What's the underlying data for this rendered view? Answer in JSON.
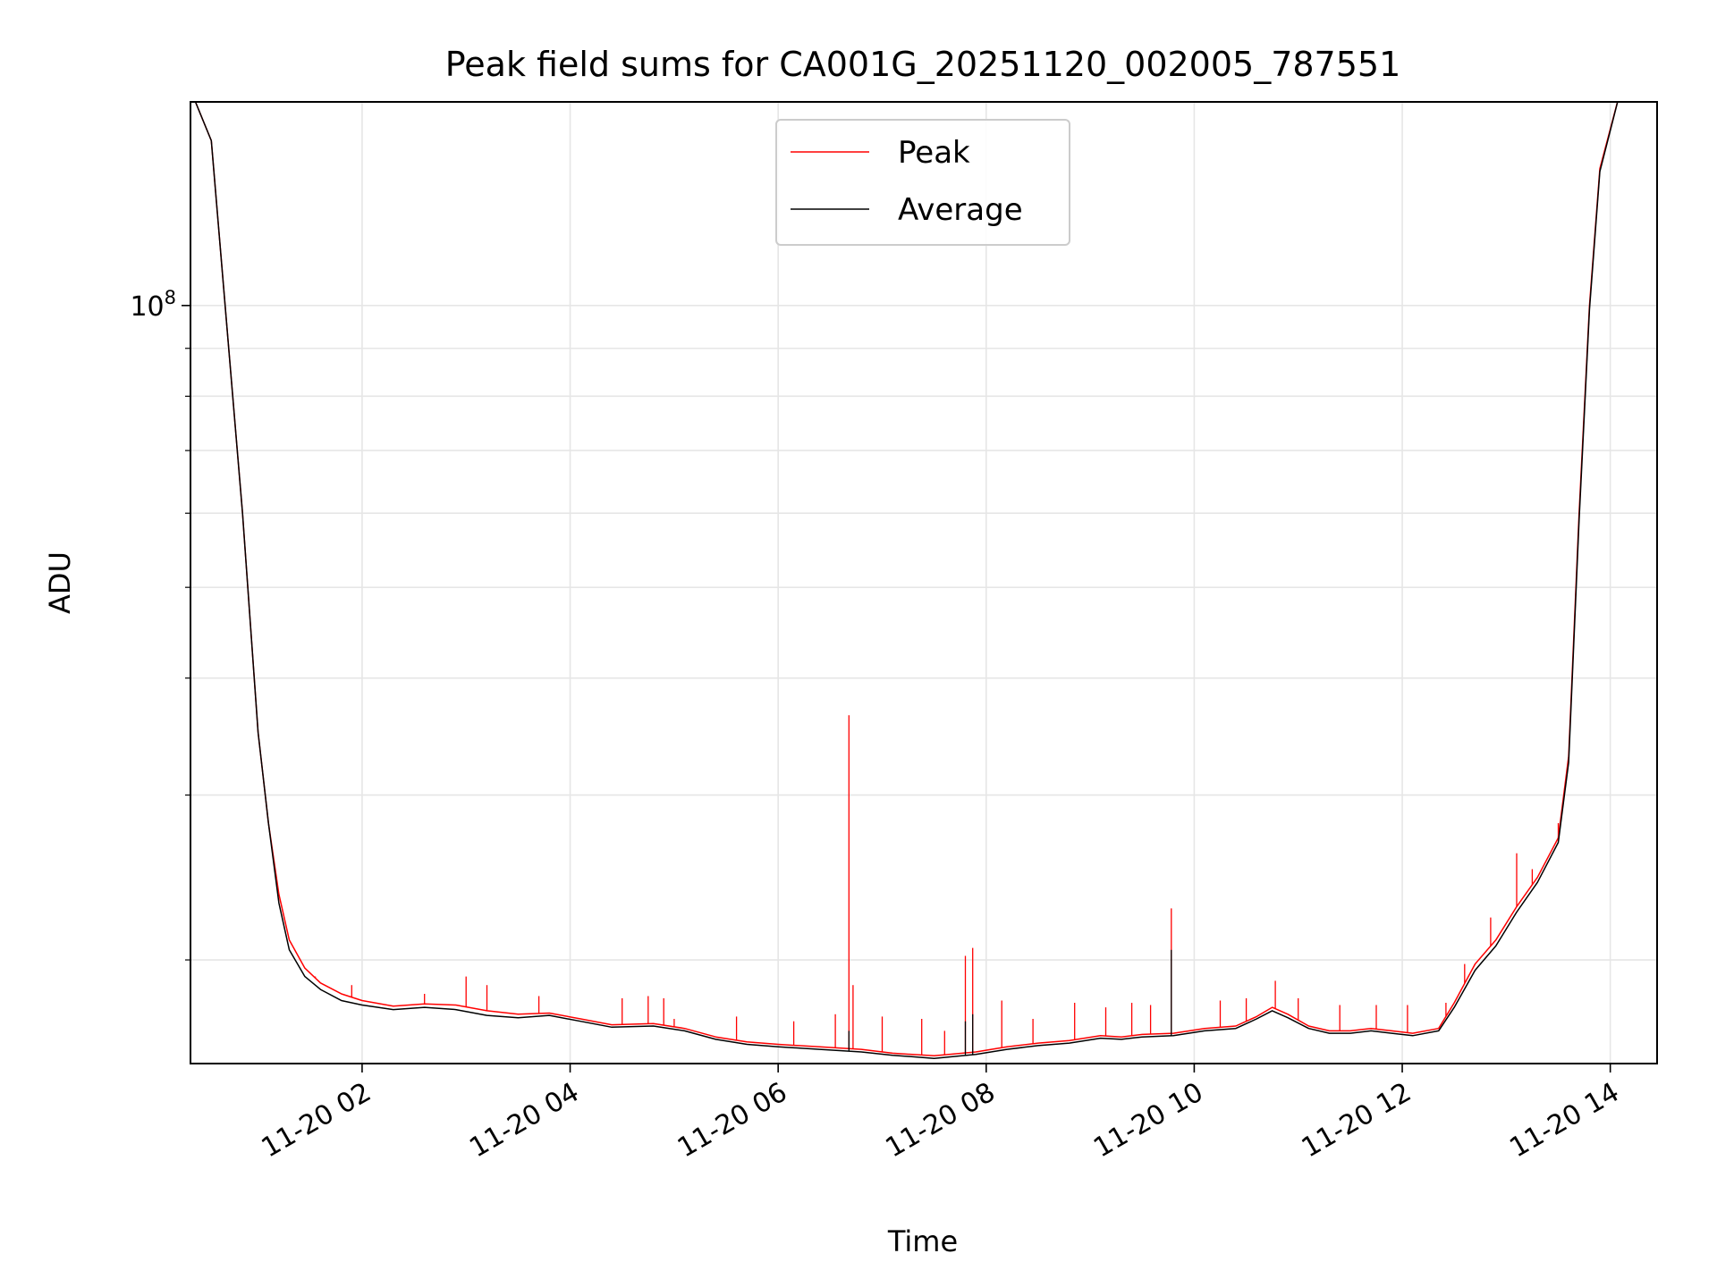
{
  "chart_data": {
    "type": "line",
    "title": "Peak field sums for CA001G_20251120_002005_787551",
    "xlabel": "Time",
    "ylabel": "ADU",
    "yscale": "log",
    "ylim": [
      15500000,
      165000000
    ],
    "xlim_hours": [
      0.35,
      14.45
    ],
    "x_date": "2025-11-20",
    "grid": true,
    "legend_loc": "upper center",
    "y_major_ticks": [
      {
        "value": 100000000,
        "base": "10",
        "exp": "8"
      }
    ],
    "y_minor_ticks": [
      20000000,
      30000000,
      40000000,
      50000000,
      60000000,
      70000000,
      80000000,
      90000000
    ],
    "x_ticks": [
      {
        "hour": 2,
        "label": "11-20 02"
      },
      {
        "hour": 4,
        "label": "11-20 04"
      },
      {
        "hour": 6,
        "label": "11-20 06"
      },
      {
        "hour": 8,
        "label": "11-20 08"
      },
      {
        "hour": 10,
        "label": "11-20 10"
      },
      {
        "hour": 12,
        "label": "11-20 12"
      },
      {
        "hour": 14,
        "label": "11-20 14"
      }
    ],
    "x_unit": "hours since 2025-11-20 00:00",
    "series": [
      {
        "name": "Peak",
        "color": "#ff0000",
        "baseline": [
          {
            "x": 0.35,
            "y": 170000000
          },
          {
            "x": 0.55,
            "y": 150000000
          },
          {
            "x": 0.7,
            "y": 95000000
          },
          {
            "x": 0.85,
            "y": 60000000
          },
          {
            "x": 1.0,
            "y": 35000000
          },
          {
            "x": 1.1,
            "y": 28000000
          },
          {
            "x": 1.2,
            "y": 23500000
          },
          {
            "x": 1.3,
            "y": 21000000
          },
          {
            "x": 1.45,
            "y": 19600000
          },
          {
            "x": 1.6,
            "y": 18900000
          },
          {
            "x": 1.8,
            "y": 18400000
          },
          {
            "x": 2.0,
            "y": 18100000
          },
          {
            "x": 2.3,
            "y": 17850000
          },
          {
            "x": 2.6,
            "y": 17950000
          },
          {
            "x": 2.9,
            "y": 17900000
          },
          {
            "x": 3.2,
            "y": 17650000
          },
          {
            "x": 3.5,
            "y": 17500000
          },
          {
            "x": 3.8,
            "y": 17550000
          },
          {
            "x": 4.1,
            "y": 17300000
          },
          {
            "x": 4.4,
            "y": 17050000
          },
          {
            "x": 4.8,
            "y": 17100000
          },
          {
            "x": 5.1,
            "y": 16900000
          },
          {
            "x": 5.4,
            "y": 16550000
          },
          {
            "x": 5.7,
            "y": 16350000
          },
          {
            "x": 6.0,
            "y": 16250000
          },
          {
            "x": 6.4,
            "y": 16150000
          },
          {
            "x": 6.8,
            "y": 16050000
          },
          {
            "x": 7.1,
            "y": 15900000
          },
          {
            "x": 7.5,
            "y": 15800000
          },
          {
            "x": 7.9,
            "y": 15950000
          },
          {
            "x": 8.2,
            "y": 16150000
          },
          {
            "x": 8.5,
            "y": 16300000
          },
          {
            "x": 8.8,
            "y": 16400000
          },
          {
            "x": 9.1,
            "y": 16600000
          },
          {
            "x": 9.3,
            "y": 16550000
          },
          {
            "x": 9.5,
            "y": 16650000
          },
          {
            "x": 9.8,
            "y": 16700000
          },
          {
            "x": 10.1,
            "y": 16900000
          },
          {
            "x": 10.4,
            "y": 17000000
          },
          {
            "x": 10.6,
            "y": 17400000
          },
          {
            "x": 10.75,
            "y": 17800000
          },
          {
            "x": 10.9,
            "y": 17500000
          },
          {
            "x": 11.1,
            "y": 17000000
          },
          {
            "x": 11.3,
            "y": 16800000
          },
          {
            "x": 11.5,
            "y": 16800000
          },
          {
            "x": 11.7,
            "y": 16900000
          },
          {
            "x": 11.9,
            "y": 16800000
          },
          {
            "x": 12.1,
            "y": 16700000
          },
          {
            "x": 12.35,
            "y": 16900000
          },
          {
            "x": 12.5,
            "y": 18000000
          },
          {
            "x": 12.7,
            "y": 19800000
          },
          {
            "x": 12.9,
            "y": 21000000
          },
          {
            "x": 13.1,
            "y": 22800000
          },
          {
            "x": 13.3,
            "y": 24500000
          },
          {
            "x": 13.5,
            "y": 27000000
          },
          {
            "x": 13.6,
            "y": 33000000
          },
          {
            "x": 13.7,
            "y": 60000000
          },
          {
            "x": 13.8,
            "y": 100000000
          },
          {
            "x": 13.9,
            "y": 140000000
          },
          {
            "x": 14.1,
            "y": 170000000
          }
        ],
        "spikes": [
          {
            "x": 1.55,
            "y": 19200000
          },
          {
            "x": 1.9,
            "y": 18800000
          },
          {
            "x": 2.6,
            "y": 18400000
          },
          {
            "x": 3.0,
            "y": 19200000
          },
          {
            "x": 3.2,
            "y": 18800000
          },
          {
            "x": 3.7,
            "y": 18300000
          },
          {
            "x": 4.5,
            "y": 18200000
          },
          {
            "x": 4.75,
            "y": 18300000
          },
          {
            "x": 4.9,
            "y": 18200000
          },
          {
            "x": 5.0,
            "y": 17300000
          },
          {
            "x": 5.6,
            "y": 17400000
          },
          {
            "x": 6.15,
            "y": 17200000
          },
          {
            "x": 6.55,
            "y": 17500000
          },
          {
            "x": 6.68,
            "y": 36500000
          },
          {
            "x": 6.72,
            "y": 18800000
          },
          {
            "x": 7.0,
            "y": 17400000
          },
          {
            "x": 7.38,
            "y": 17300000
          },
          {
            "x": 7.6,
            "y": 16800000
          },
          {
            "x": 7.8,
            "y": 20200000
          },
          {
            "x": 7.87,
            "y": 20600000
          },
          {
            "x": 8.15,
            "y": 18100000
          },
          {
            "x": 8.45,
            "y": 17300000
          },
          {
            "x": 8.85,
            "y": 18000000
          },
          {
            "x": 9.15,
            "y": 17800000
          },
          {
            "x": 9.4,
            "y": 18000000
          },
          {
            "x": 9.58,
            "y": 17900000
          },
          {
            "x": 9.78,
            "y": 22700000
          },
          {
            "x": 10.25,
            "y": 18100000
          },
          {
            "x": 10.5,
            "y": 18200000
          },
          {
            "x": 10.78,
            "y": 19000000
          },
          {
            "x": 11.0,
            "y": 18200000
          },
          {
            "x": 11.4,
            "y": 17900000
          },
          {
            "x": 11.75,
            "y": 17900000
          },
          {
            "x": 12.05,
            "y": 17900000
          },
          {
            "x": 12.42,
            "y": 18000000
          },
          {
            "x": 12.6,
            "y": 19800000
          },
          {
            "x": 12.85,
            "y": 22200000
          },
          {
            "x": 13.1,
            "y": 26000000
          },
          {
            "x": 13.25,
            "y": 25000000
          },
          {
            "x": 13.5,
            "y": 28000000
          }
        ]
      },
      {
        "name": "Average",
        "color": "#000000",
        "baseline": [
          {
            "x": 0.35,
            "y": 170000000
          },
          {
            "x": 0.55,
            "y": 150000000
          },
          {
            "x": 0.7,
            "y": 95000000
          },
          {
            "x": 0.85,
            "y": 60000000
          },
          {
            "x": 1.0,
            "y": 35000000
          },
          {
            "x": 1.1,
            "y": 28000000
          },
          {
            "x": 1.2,
            "y": 23000000
          },
          {
            "x": 1.3,
            "y": 20500000
          },
          {
            "x": 1.45,
            "y": 19200000
          },
          {
            "x": 1.6,
            "y": 18600000
          },
          {
            "x": 1.8,
            "y": 18100000
          },
          {
            "x": 2.0,
            "y": 17900000
          },
          {
            "x": 2.3,
            "y": 17700000
          },
          {
            "x": 2.6,
            "y": 17800000
          },
          {
            "x": 2.9,
            "y": 17700000
          },
          {
            "x": 3.2,
            "y": 17450000
          },
          {
            "x": 3.5,
            "y": 17350000
          },
          {
            "x": 3.8,
            "y": 17450000
          },
          {
            "x": 4.1,
            "y": 17200000
          },
          {
            "x": 4.4,
            "y": 16950000
          },
          {
            "x": 4.8,
            "y": 17000000
          },
          {
            "x": 5.1,
            "y": 16800000
          },
          {
            "x": 5.4,
            "y": 16450000
          },
          {
            "x": 5.7,
            "y": 16250000
          },
          {
            "x": 6.0,
            "y": 16150000
          },
          {
            "x": 6.4,
            "y": 16050000
          },
          {
            "x": 6.8,
            "y": 15950000
          },
          {
            "x": 7.1,
            "y": 15820000
          },
          {
            "x": 7.5,
            "y": 15700000
          },
          {
            "x": 7.9,
            "y": 15850000
          },
          {
            "x": 8.2,
            "y": 16050000
          },
          {
            "x": 8.5,
            "y": 16200000
          },
          {
            "x": 8.8,
            "y": 16300000
          },
          {
            "x": 9.1,
            "y": 16500000
          },
          {
            "x": 9.3,
            "y": 16450000
          },
          {
            "x": 9.5,
            "y": 16550000
          },
          {
            "x": 9.8,
            "y": 16600000
          },
          {
            "x": 10.1,
            "y": 16800000
          },
          {
            "x": 10.4,
            "y": 16900000
          },
          {
            "x": 10.6,
            "y": 17300000
          },
          {
            "x": 10.75,
            "y": 17650000
          },
          {
            "x": 10.9,
            "y": 17350000
          },
          {
            "x": 11.1,
            "y": 16900000
          },
          {
            "x": 11.3,
            "y": 16700000
          },
          {
            "x": 11.5,
            "y": 16700000
          },
          {
            "x": 11.7,
            "y": 16800000
          },
          {
            "x": 11.9,
            "y": 16700000
          },
          {
            "x": 12.1,
            "y": 16600000
          },
          {
            "x": 12.35,
            "y": 16800000
          },
          {
            "x": 12.5,
            "y": 17800000
          },
          {
            "x": 12.7,
            "y": 19500000
          },
          {
            "x": 12.9,
            "y": 20700000
          },
          {
            "x": 13.1,
            "y": 22500000
          },
          {
            "x": 13.3,
            "y": 24200000
          },
          {
            "x": 13.5,
            "y": 26700000
          },
          {
            "x": 13.6,
            "y": 32500000
          },
          {
            "x": 13.7,
            "y": 59000000
          },
          {
            "x": 13.8,
            "y": 99000000
          },
          {
            "x": 13.9,
            "y": 139000000
          },
          {
            "x": 14.1,
            "y": 170000000
          }
        ],
        "spikes": [
          {
            "x": 7.8,
            "y": 17200000
          },
          {
            "x": 7.87,
            "y": 17500000
          },
          {
            "x": 9.78,
            "y": 20500000
          },
          {
            "x": 6.68,
            "y": 16800000
          }
        ]
      }
    ]
  }
}
